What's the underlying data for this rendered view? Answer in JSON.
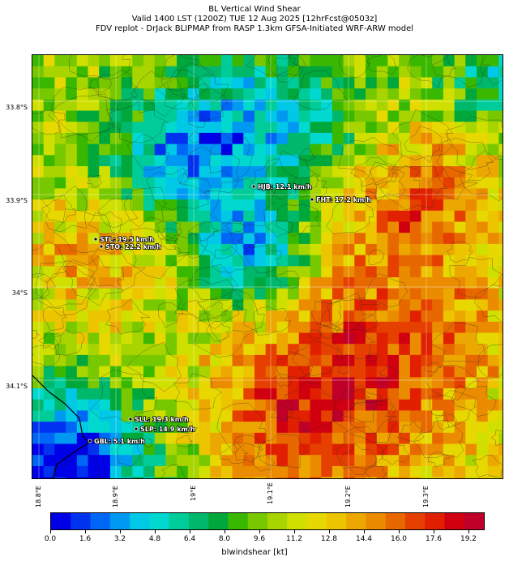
{
  "header": {
    "title": "BL Vertical Wind Shear",
    "valid_line": "Valid 1400 LST (1200Z) TUE 12 Aug 2025 [12hrFcst@0503z]",
    "source_line": "FDV replot - DrJack BLIPMAP from RASP 1.3km GFSA-Initiated WRF-ARW model"
  },
  "map": {
    "lat_labels": [
      "33.8°S",
      "33.9°S",
      "34°S",
      "34.1°S"
    ],
    "lon_labels": [
      "18.8°E",
      "18.9°E",
      "19°E",
      "19.1°E",
      "19.2°E",
      "19.3°E"
    ],
    "stations": [
      {
        "label": "HJB: 12.1 km/h"
      },
      {
        "label": "FHT: 17.2 km/h"
      },
      {
        "label": "STL: 19.5 km/h"
      },
      {
        "label": "STO: 22.2 km/h"
      },
      {
        "label": "SLL: 19.3 km/h"
      },
      {
        "label": "SLP: 14.9 km/h"
      },
      {
        "label": "GBL: 5.1 km/h"
      }
    ]
  },
  "colorbar": {
    "ticks": [
      "0.0",
      "1.6",
      "3.2",
      "4.8",
      "6.4",
      "8.0",
      "9.6",
      "11.2",
      "12.8",
      "14.4",
      "16.0",
      "17.6",
      "19.2"
    ],
    "label": "blwindshear [kt]",
    "colors": [
      "#0000e6",
      "#0033f0",
      "#0066f5",
      "#0099f2",
      "#00c8e6",
      "#00d8d0",
      "#00cc99",
      "#00b86b",
      "#00a83c",
      "#3ab800",
      "#78c800",
      "#a8d400",
      "#cfe000",
      "#e6d800",
      "#ecc400",
      "#eca800",
      "#eb8c00",
      "#e86800",
      "#e64000",
      "#e02000",
      "#d00010",
      "#c00028"
    ]
  }
}
